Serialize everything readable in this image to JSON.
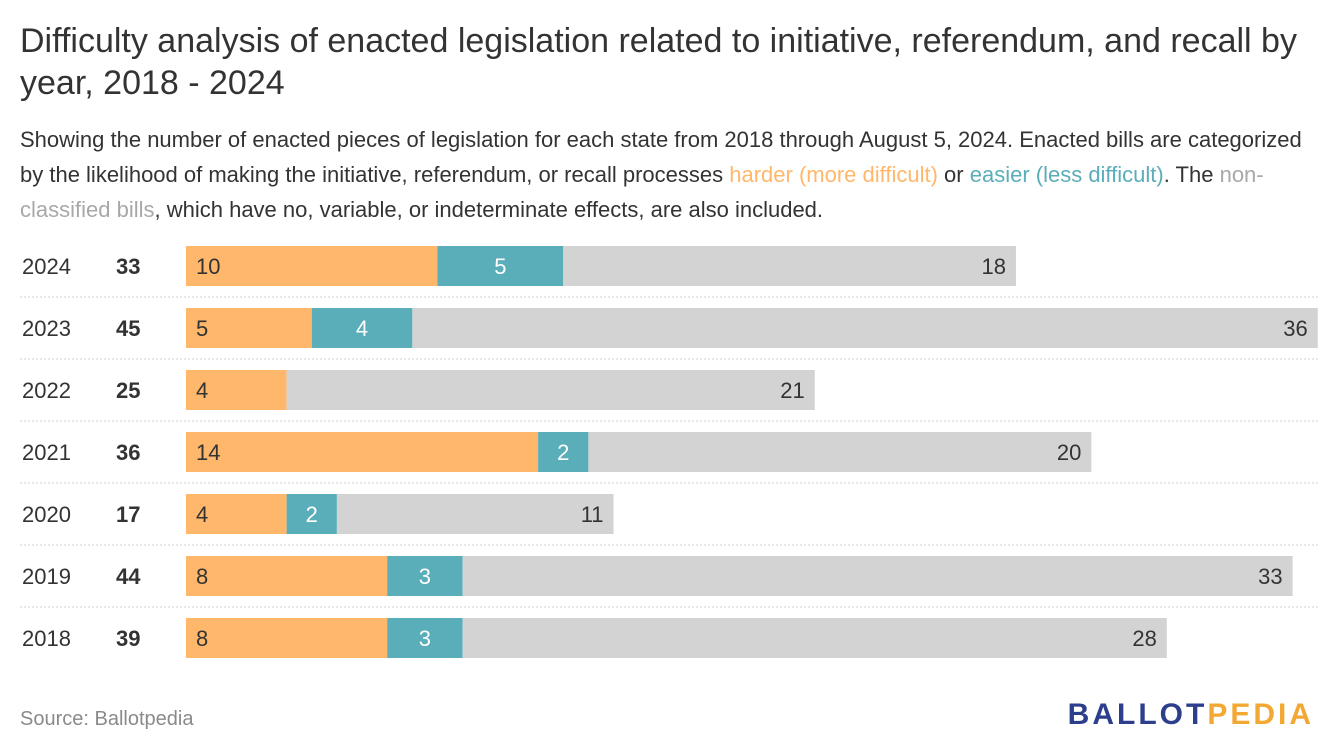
{
  "title": "Difficulty analysis of enacted legislation related to initiative, referendum, and recall by year, 2018 - 2024",
  "subtitle": {
    "part1": "Showing the number of enacted pieces of legislation for each state from 2018 through August 5, 2024. Enacted bills are categorized by the likelihood of making the initiative, referendum, or recall processes ",
    "harder": "harder (more difficult)",
    "part2": " or ",
    "easier": "easier (less difficult)",
    "part3": ". The ",
    "nonclassified": "non-classified bills",
    "part4": ", which have no, variable, or indeterminate effects, are also included."
  },
  "colors": {
    "harder": "#FFB76B",
    "easier": "#5AAEB9",
    "nonclassified": "#D3D3D3"
  },
  "chart_data": {
    "type": "bar",
    "orientation": "horizontal",
    "stacked": true,
    "categories": [
      "2024",
      "2023",
      "2022",
      "2021",
      "2020",
      "2019",
      "2018"
    ],
    "totals": [
      "33",
      "45",
      "25",
      "36",
      "17",
      "44",
      "39"
    ],
    "series": [
      {
        "key": "harder",
        "values": [
          10,
          5,
          4,
          14,
          4,
          8,
          8
        ]
      },
      {
        "key": "easier",
        "values": [
          5,
          4,
          0,
          2,
          2,
          3,
          3
        ]
      },
      {
        "key": "nonclassified",
        "values": [
          18,
          36,
          21,
          20,
          11,
          33,
          28
        ]
      }
    ],
    "xlim": [
      0,
      45
    ],
    "grid": false,
    "legend": "inline in subtitle"
  },
  "source": "Source: Ballotpedia",
  "logo": {
    "part1": "BALLOT",
    "part2": "PEDIA"
  }
}
